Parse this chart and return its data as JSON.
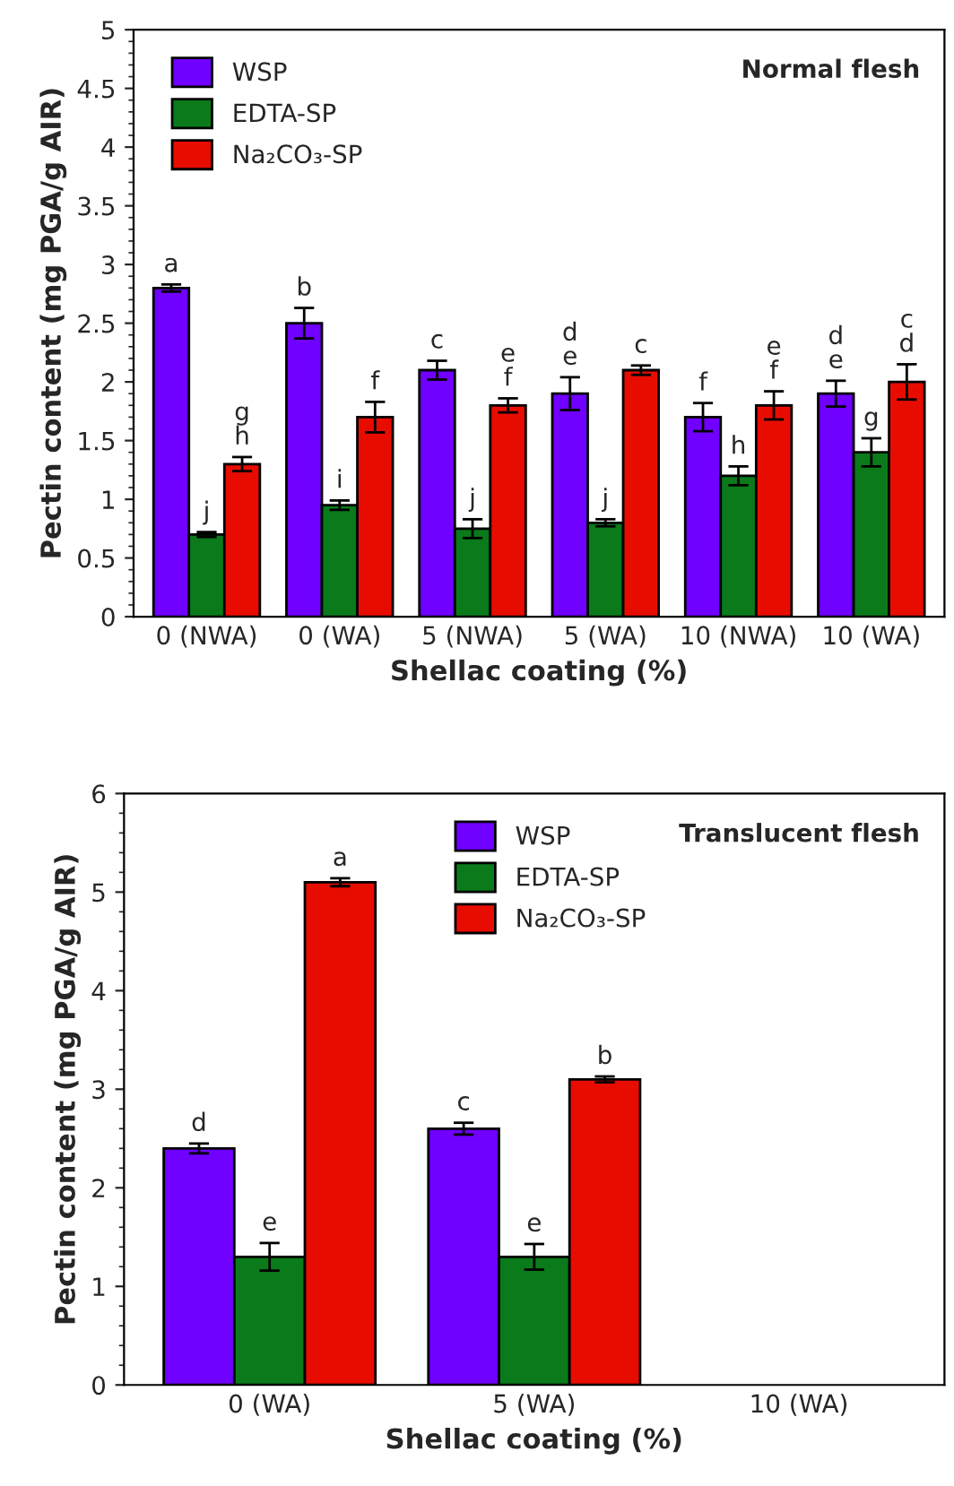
{
  "chart_data": [
    {
      "type": "bar",
      "xlabel": "Shellac coating (%)",
      "ylabel": "Pectin content (mg PGA/g AIR)",
      "categories": [
        "0 (NWA)",
        "0 (WA)",
        "5 (NWA)",
        "5 (WA)",
        "10 (NWA)",
        "10 (WA)"
      ],
      "ylim": [
        0,
        5
      ],
      "yticks": [
        0,
        0.5,
        1,
        1.5,
        2,
        2.5,
        3,
        3.5,
        4,
        4.5,
        5
      ],
      "legend": "top left",
      "grid": false,
      "annotations": [
        "Normal flesh"
      ],
      "series": [
        {
          "name": "WSP",
          "color": "#7000ff",
          "values": [
            2.8,
            2.5,
            2.1,
            1.9,
            1.7,
            1.9
          ],
          "errors": [
            0.03,
            0.13,
            0.08,
            0.14,
            0.12,
            0.11
          ],
          "value_labels": [
            "a",
            "b",
            "c",
            "d\ne",
            "f",
            "d\ne"
          ]
        },
        {
          "name": "EDTA-SP",
          "color": "#0a7a1a",
          "values": [
            0.7,
            0.95,
            0.75,
            0.8,
            1.2,
            1.4
          ],
          "errors": [
            0.02,
            0.04,
            0.08,
            0.03,
            0.08,
            0.12
          ],
          "value_labels": [
            "j",
            "i",
            "j",
            "j",
            "h",
            "g"
          ]
        },
        {
          "name": "Na₂CO₃-SP",
          "color": "#e80c00",
          "values": [
            1.3,
            1.7,
            1.8,
            2.1,
            1.8,
            2.0
          ],
          "errors": [
            0.06,
            0.13,
            0.06,
            0.04,
            0.12,
            0.15
          ],
          "value_labels": [
            "g\nh",
            "f",
            "e\nf",
            "c",
            "e\nf",
            "c\nd"
          ]
        }
      ]
    },
    {
      "type": "bar",
      "xlabel": "Shellac coating (%)",
      "ylabel": "Pectin content (mg PGA/g AIR)",
      "categories": [
        "0 (WA)",
        "5 (WA)",
        "10 (WA)"
      ],
      "ylim": [
        0,
        6
      ],
      "yticks": [
        0,
        1,
        2,
        3,
        4,
        5,
        6
      ],
      "legend": "top",
      "grid": false,
      "annotations": [
        "Translucent flesh"
      ],
      "series": [
        {
          "name": "WSP",
          "color": "#7000ff",
          "values": [
            2.4,
            2.6,
            null
          ],
          "errors": [
            0.05,
            0.06,
            null
          ],
          "value_labels": [
            "d",
            "c",
            null
          ]
        },
        {
          "name": "EDTA-SP",
          "color": "#0a7a1a",
          "values": [
            1.3,
            1.3,
            null
          ],
          "errors": [
            0.14,
            0.13,
            null
          ],
          "value_labels": [
            "e",
            "e",
            null
          ]
        },
        {
          "name": "Na₂CO₃-SP",
          "color": "#e80c00",
          "values": [
            5.1,
            3.1,
            null
          ],
          "errors": [
            0.04,
            0.03,
            null
          ],
          "value_labels": [
            "a",
            "b",
            null
          ]
        }
      ]
    }
  ]
}
